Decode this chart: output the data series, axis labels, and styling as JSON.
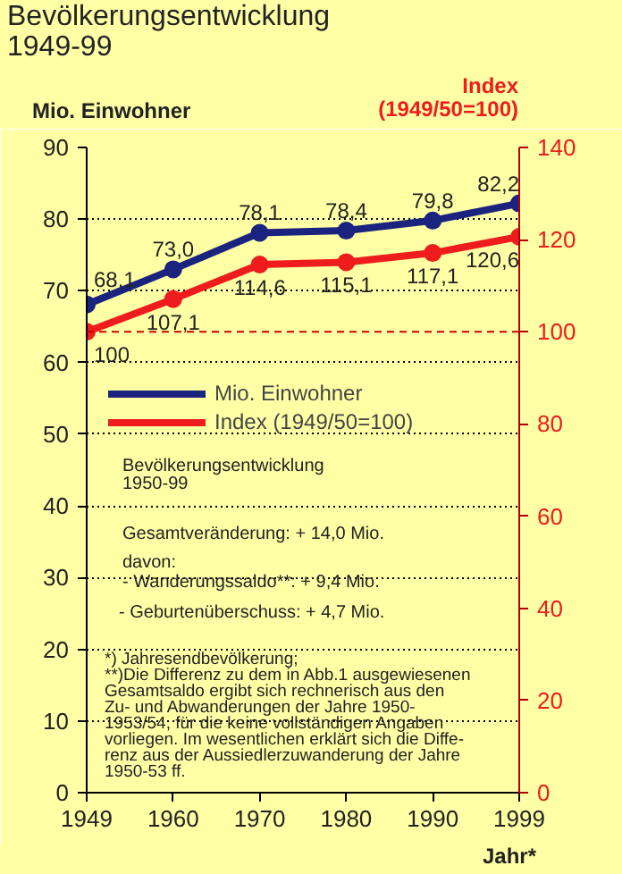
{
  "chart_data": {
    "type": "line",
    "title": "Bevölkerungsentwicklung\n1949-99",
    "xlabel": "Jahr*",
    "ylabel": "Mio. Einwohner",
    "y2label": "Index\n(1949/50=100)",
    "categories": [
      "1949",
      "1960",
      "1970",
      "1980",
      "1990",
      "1999"
    ],
    "series": [
      {
        "name": "Mio. Einwohner",
        "color": "#1a237e",
        "values": [
          68.1,
          73.0,
          78.1,
          78.4,
          79.8,
          82.2
        ],
        "value_labels": [
          "68,1",
          "73,0",
          "78,1",
          "78,4",
          "79,8",
          "82,2"
        ]
      },
      {
        "name": "Index (1949/50=100)",
        "color": "#ee1c1c",
        "axis": "y2",
        "values": [
          100,
          107.1,
          114.6,
          115.1,
          117.1,
          120.6
        ],
        "value_labels": [
          "100",
          "107,1",
          "114,6",
          "115,1",
          "117,1",
          "120,6"
        ]
      }
    ],
    "ylim": [
      0,
      90
    ],
    "yticks": [
      0,
      10,
      20,
      30,
      40,
      50,
      60,
      70,
      80,
      90
    ],
    "y2lim": [
      0,
      140
    ],
    "y2ticks": [
      0,
      20,
      40,
      60,
      80,
      100,
      120,
      140
    ],
    "ref_lines": [
      {
        "axis": "y2",
        "value": 100,
        "color": "#cc0000",
        "line_style": "dashed"
      }
    ],
    "grid": "y",
    "legend": "left",
    "marker": "circle",
    "line_style": "solid",
    "annotations": [
      "Bevölkerungsentwicklung\n1950-99",
      "Gesamtveränderung:    + 14,0 Mio.",
      "davon:\n- Wanderungssaldo**:    +   9,4 Mio.",
      "- Geburtenüberschuss:  +   4,7 Mio.",
      "*) Jahresendbevölkerung;\n**)Die Differenz zu dem in Abb.1 ausgewiesenen\nGesamtsaldo ergibt sich rechnerisch aus den\nZu- und Abwanderungen der Jahre 1950-\n1953/54, für die keine vollständigen Angaben\nvorliegen. Im wesentlichen erklärt sich die Diffe-\nrenz aus der Aussiedlerzuwanderung der Jahre\n1950-53 ff."
    ]
  }
}
